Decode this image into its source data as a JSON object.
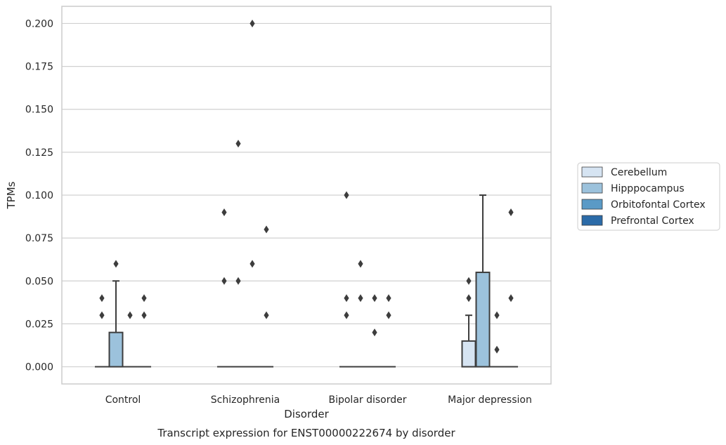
{
  "chart_data": {
    "type": "box",
    "xlabel": "Disorder",
    "ylabel": "TPMs",
    "caption": "Transcript expression for ENST00000222674 by disorder",
    "ylim": [
      -0.01,
      0.21
    ],
    "yticks": [
      "0.000",
      "0.025",
      "0.050",
      "0.075",
      "0.100",
      "0.125",
      "0.150",
      "0.175",
      "0.200"
    ],
    "grid": "horizontal",
    "legend_position": "right",
    "categories": [
      "Control",
      "Schizophrenia",
      "Bipolar disorder",
      "Major depression"
    ],
    "series": [
      {
        "name": "Cerebellum",
        "color": "#d6e4f2",
        "boxes": [
          {
            "q1": 0,
            "median": 0,
            "q3": 0,
            "whisker_low": 0,
            "whisker_high": 0,
            "outliers": [
              0.03,
              0.04
            ]
          },
          {
            "q1": 0,
            "median": 0,
            "q3": 0,
            "whisker_low": 0,
            "whisker_high": 0,
            "outliers": [
              0.05,
              0.09
            ]
          },
          {
            "q1": 0,
            "median": 0,
            "q3": 0,
            "whisker_low": 0,
            "whisker_high": 0,
            "outliers": [
              0.03,
              0.04,
              0.1
            ]
          },
          {
            "q1": 0,
            "median": 0,
            "q3": 0.015,
            "whisker_low": 0,
            "whisker_high": 0.03,
            "outliers": [
              0.04,
              0.05
            ]
          }
        ]
      },
      {
        "name": "Hipppocampus",
        "color": "#9cc2dc",
        "boxes": [
          {
            "q1": 0,
            "median": 0,
            "q3": 0.02,
            "whisker_low": 0,
            "whisker_high": 0.05,
            "outliers": [
              0.06
            ]
          },
          {
            "q1": 0,
            "median": 0,
            "q3": 0,
            "whisker_low": 0,
            "whisker_high": 0,
            "outliers": [
              0.05,
              0.13
            ]
          },
          {
            "q1": 0,
            "median": 0,
            "q3": 0,
            "whisker_low": 0,
            "whisker_high": 0,
            "outliers": [
              0.04,
              0.06
            ]
          },
          {
            "q1": 0,
            "median": 0,
            "q3": 0.055,
            "whisker_low": 0,
            "whisker_high": 0.1,
            "outliers": []
          }
        ]
      },
      {
        "name": "Orbitofontal Cortex",
        "color": "#5a9ac6",
        "boxes": [
          {
            "q1": 0,
            "median": 0,
            "q3": 0,
            "whisker_low": 0,
            "whisker_high": 0,
            "outliers": [
              0.03
            ]
          },
          {
            "q1": 0,
            "median": 0,
            "q3": 0,
            "whisker_low": 0,
            "whisker_high": 0,
            "outliers": [
              0.06,
              0.2
            ]
          },
          {
            "q1": 0,
            "median": 0,
            "q3": 0,
            "whisker_low": 0,
            "whisker_high": 0,
            "outliers": [
              0.02,
              0.04
            ]
          },
          {
            "q1": 0,
            "median": 0,
            "q3": 0,
            "whisker_low": 0,
            "whisker_high": 0,
            "outliers": [
              0.01,
              0.03
            ]
          }
        ]
      },
      {
        "name": "Prefrontal Cortex",
        "color": "#2b6ba8",
        "boxes": [
          {
            "q1": 0,
            "median": 0,
            "q3": 0,
            "whisker_low": 0,
            "whisker_high": 0,
            "outliers": [
              0.03,
              0.04
            ]
          },
          {
            "q1": 0,
            "median": 0,
            "q3": 0,
            "whisker_low": 0,
            "whisker_high": 0,
            "outliers": [
              0.03,
              0.08
            ]
          },
          {
            "q1": 0,
            "median": 0,
            "q3": 0,
            "whisker_low": 0,
            "whisker_high": 0,
            "outliers": [
              0.03,
              0.04
            ]
          },
          {
            "q1": 0,
            "median": 0,
            "q3": 0,
            "whisker_low": 0,
            "whisker_high": 0,
            "outliers": [
              0.04,
              0.09
            ]
          }
        ]
      }
    ]
  }
}
